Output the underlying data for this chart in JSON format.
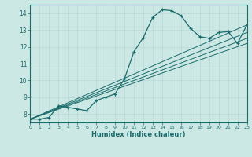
{
  "xlabel": "Humidex (Indice chaleur)",
  "ylabel": "",
  "bg_color": "#cce8e5",
  "line_color": "#1a6b6b",
  "xlim": [
    0,
    23
  ],
  "ylim": [
    7.5,
    14.5
  ],
  "xticks": [
    0,
    1,
    2,
    3,
    4,
    5,
    6,
    7,
    8,
    9,
    10,
    11,
    12,
    13,
    14,
    15,
    16,
    17,
    18,
    19,
    20,
    21,
    22,
    23
  ],
  "yticks": [
    8,
    9,
    10,
    11,
    12,
    13,
    14
  ],
  "series": [
    [
      0,
      7.7
    ],
    [
      1,
      7.7
    ],
    [
      2,
      7.8
    ],
    [
      3,
      8.5
    ],
    [
      4,
      8.4
    ],
    [
      5,
      8.3
    ],
    [
      6,
      8.2
    ],
    [
      7,
      8.8
    ],
    [
      8,
      9.0
    ],
    [
      9,
      9.2
    ],
    [
      10,
      10.1
    ],
    [
      11,
      11.7
    ],
    [
      12,
      12.55
    ],
    [
      13,
      13.75
    ],
    [
      14,
      14.2
    ],
    [
      15,
      14.15
    ],
    [
      16,
      13.85
    ],
    [
      17,
      13.1
    ],
    [
      18,
      12.6
    ],
    [
      19,
      12.5
    ],
    [
      20,
      12.85
    ],
    [
      21,
      12.9
    ],
    [
      22,
      12.2
    ],
    [
      23,
      13.3
    ]
  ],
  "linear_lines": [
    [
      [
        0,
        7.7
      ],
      [
        23,
        12.2
      ]
    ],
    [
      [
        0,
        7.7
      ],
      [
        23,
        12.5
      ]
    ],
    [
      [
        0,
        7.7
      ],
      [
        23,
        12.85
      ]
    ],
    [
      [
        0,
        7.7
      ],
      [
        23,
        13.3
      ]
    ]
  ]
}
